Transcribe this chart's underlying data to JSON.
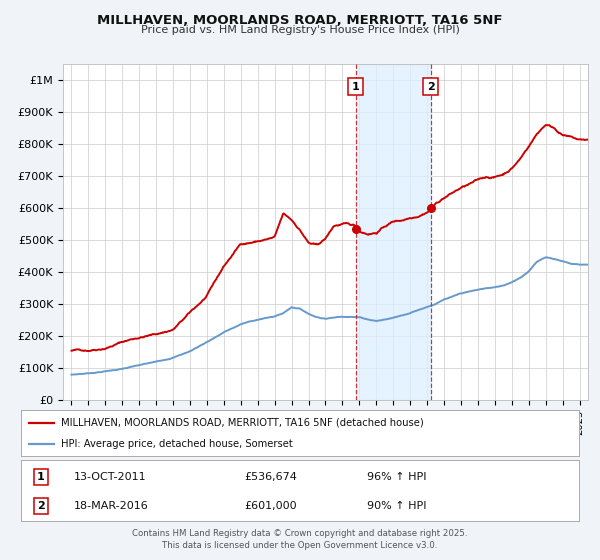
{
  "title": "MILLHAVEN, MOORLANDS ROAD, MERRIOTT, TA16 5NF",
  "subtitle": "Price paid vs. HM Land Registry's House Price Index (HPI)",
  "bg_color": "#f0f4f8",
  "plot_bg_color": "#ffffff",
  "grid_color": "#cccccc",
  "red_line_color": "#cc0000",
  "blue_line_color": "#6699cc",
  "marker1_x": 2011.78,
  "marker1_y": 536674,
  "marker2_x": 2016.21,
  "marker2_y": 601000,
  "vline1_x": 2011.78,
  "vline2_x": 2016.21,
  "shade_x1": 2011.78,
  "shade_x2": 2016.21,
  "legend_red_label": "MILLHAVEN, MOORLANDS ROAD, MERRIOTT, TA16 5NF (detached house)",
  "legend_blue_label": "HPI: Average price, detached house, Somerset",
  "table_row1": [
    "1",
    "13-OCT-2011",
    "£536,674",
    "96% ↑ HPI"
  ],
  "table_row2": [
    "2",
    "18-MAR-2016",
    "£601,000",
    "90% ↑ HPI"
  ],
  "footer": "Contains HM Land Registry data © Crown copyright and database right 2025.\nThis data is licensed under the Open Government Licence v3.0.",
  "ylim": [
    0,
    1050000
  ],
  "xlim": [
    1994.5,
    2025.5
  ],
  "yticks": [
    0,
    100000,
    200000,
    300000,
    400000,
    500000,
    600000,
    700000,
    800000,
    900000,
    1000000
  ],
  "ytick_labels": [
    "£0",
    "£100K",
    "£200K",
    "£300K",
    "£400K",
    "£500K",
    "£600K",
    "£700K",
    "£800K",
    "£900K",
    "£1M"
  ]
}
